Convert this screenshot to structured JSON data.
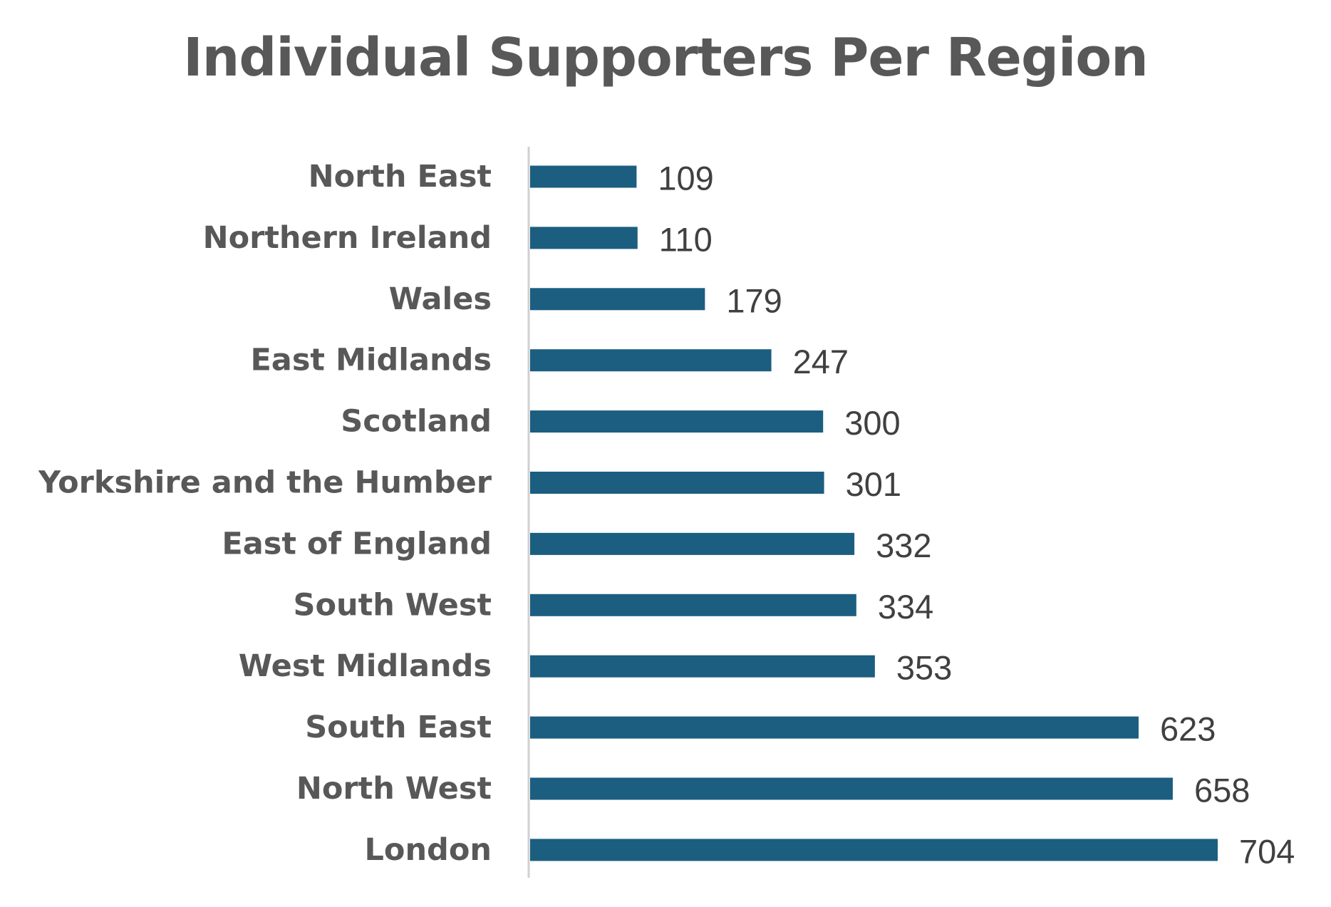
{
  "chart_data": {
    "type": "bar",
    "orientation": "horizontal",
    "title": "Individual Supporters Per Region",
    "categories": [
      "North East",
      "Northern Ireland",
      "Wales",
      "East Midlands",
      "Scotland",
      "Yorkshire and the Humber",
      "East of England",
      "South West",
      "West Midlands",
      "South East",
      "North West",
      "London"
    ],
    "values": [
      109,
      110,
      179,
      247,
      300,
      301,
      332,
      334,
      353,
      623,
      658,
      704
    ],
    "value_labels": [
      "109",
      "110",
      "179",
      "247",
      "300",
      "301",
      "332",
      "334",
      "353",
      "623",
      "658",
      "704"
    ],
    "xlim": [
      0,
      704
    ],
    "grid": false,
    "legend": "none",
    "data_labels": "outside-end",
    "bar_color": "#1B5E80",
    "axis_color": "#D0D0D0",
    "label_color": "#585858",
    "value_color": "#404040"
  }
}
